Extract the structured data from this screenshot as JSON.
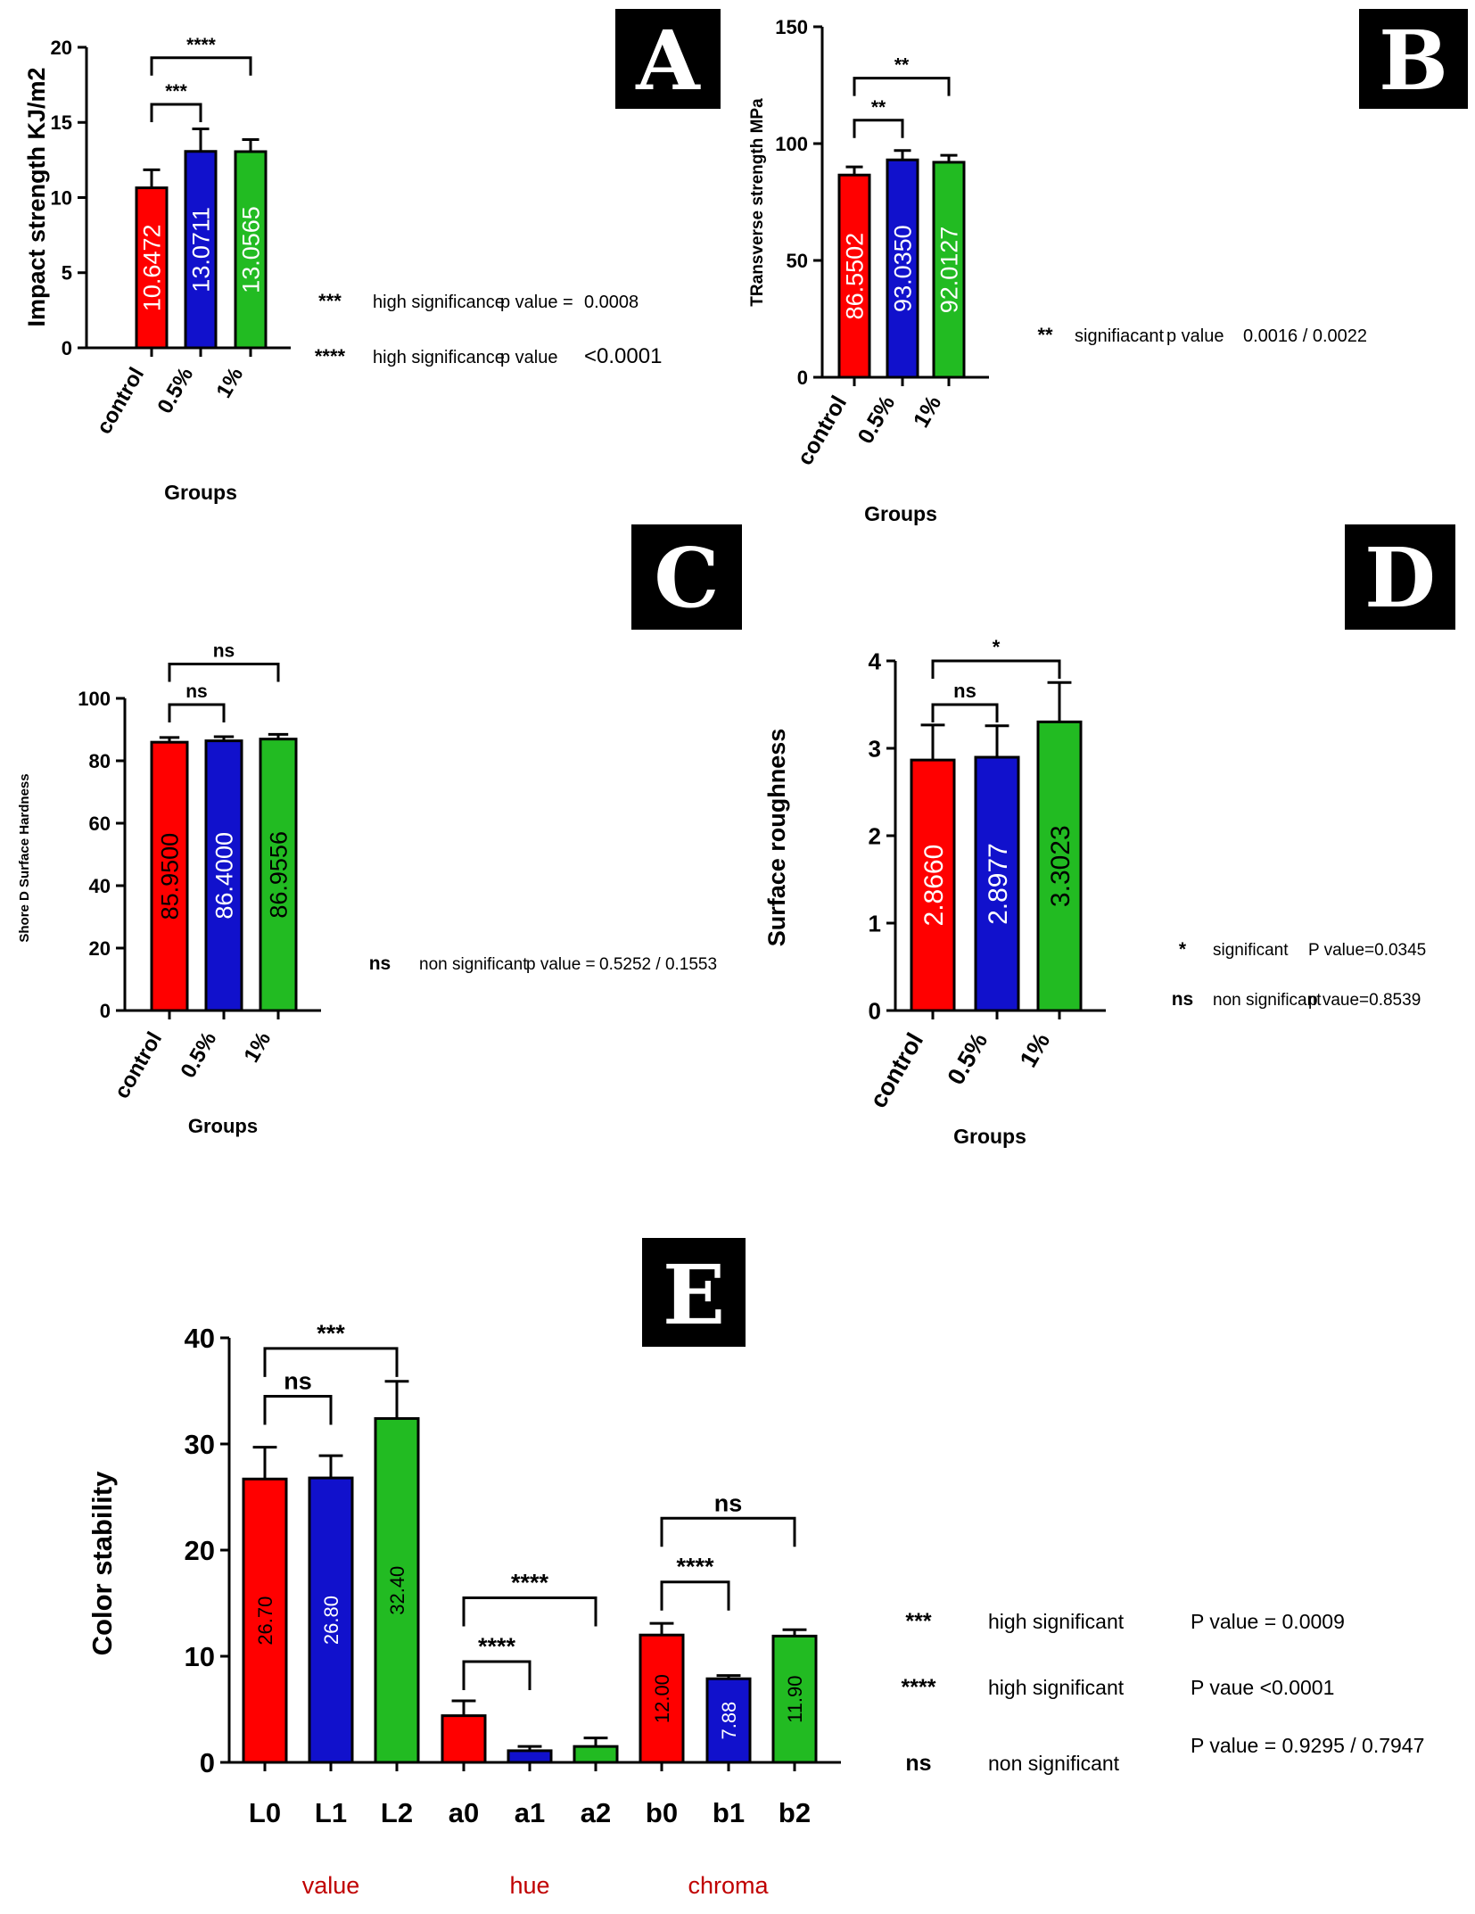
{
  "chart_data": [
    {
      "panel": "A",
      "type": "bar",
      "ylabel": "Impact strength KJ/m2",
      "xlabel": "Groups",
      "ylim": [
        0,
        20
      ],
      "yticks": [
        0,
        5,
        10,
        15,
        20
      ],
      "categories": [
        "control",
        "0.5%",
        "1%"
      ],
      "values": [
        10.6472,
        13.0711,
        13.0565
      ],
      "bar_labels": [
        "10.6472",
        "13.0711",
        "13.0565"
      ],
      "errors": [
        1.2,
        1.5,
        0.8
      ],
      "colors": [
        "#ff0000",
        "#1111cc",
        "#22bb22"
      ],
      "comparisons": [
        {
          "from": 0,
          "to": 1,
          "label": "***",
          "level": 16.2
        },
        {
          "from": 0,
          "to": 2,
          "label": "****",
          "level": 19.3
        }
      ],
      "notes": [
        {
          "symbol": "***",
          "text": "high significance",
          "plabel": "p value =",
          "pvalue": "0.0008"
        },
        {
          "symbol": "****",
          "text": "high significance",
          "plabel": "p value",
          "pvalue": "<0.0001"
        }
      ]
    },
    {
      "panel": "B",
      "type": "bar",
      "ylabel": "TRansverse strength MPa",
      "xlabel": "Groups",
      "ylim": [
        0,
        150
      ],
      "yticks": [
        0,
        50,
        100,
        150
      ],
      "categories": [
        "control",
        "0.5%",
        "1%"
      ],
      "values": [
        86.5502,
        93.035,
        92.0127
      ],
      "bar_labels": [
        "86.5502",
        "93.0350",
        "92.0127"
      ],
      "errors": [
        3.5,
        4,
        3
      ],
      "colors": [
        "#ff0000",
        "#1111cc",
        "#22bb22"
      ],
      "comparisons": [
        {
          "from": 0,
          "to": 1,
          "label": "**",
          "level": 110
        },
        {
          "from": 0,
          "to": 2,
          "label": "**",
          "level": 128
        }
      ],
      "notes": [
        {
          "symbol": "**",
          "text": "signifiacant",
          "plabel": "p value",
          "pvalue": "0.0016 /   0.0022"
        }
      ]
    },
    {
      "panel": "C",
      "type": "bar",
      "ylabel": "Shore D Surface Hardness",
      "xlabel": "Groups",
      "ylim": [
        0,
        100
      ],
      "yticks": [
        0,
        20,
        40,
        60,
        80,
        100
      ],
      "categories": [
        "control",
        "0.5%",
        "1%"
      ],
      "values": [
        85.95,
        86.4,
        86.9556
      ],
      "bar_labels": [
        "85.9500",
        "86.4000",
        "86.9556"
      ],
      "errors": [
        1.5,
        1.3,
        1.5
      ],
      "colors": [
        "#ff0000",
        "#1111cc",
        "#22bb22"
      ],
      "comparisons": [
        {
          "from": 0,
          "to": 1,
          "label": "ns",
          "level": 98
        },
        {
          "from": 0,
          "to": 2,
          "label": "ns",
          "level": 111
        }
      ],
      "notes": [
        {
          "symbol": "ns",
          "text": "non significant",
          "plabel": "p value =",
          "pvalue": "0.5252  /  0.1553"
        }
      ]
    },
    {
      "panel": "D",
      "type": "bar",
      "ylabel": "Surface roughness",
      "xlabel": "Groups",
      "ylim": [
        0,
        4
      ],
      "yticks": [
        0,
        1,
        2,
        3,
        4
      ],
      "categories": [
        "control",
        "0.5%",
        "1%"
      ],
      "values": [
        2.866,
        2.8977,
        3.3023
      ],
      "bar_labels": [
        "2.8660",
        "2.8977",
        "3.3023"
      ],
      "errors": [
        0.4,
        0.36,
        0.45
      ],
      "colors": [
        "#ff0000",
        "#1111cc",
        "#22bb22"
      ],
      "comparisons": [
        {
          "from": 0,
          "to": 1,
          "label": "ns",
          "level": 3.5
        },
        {
          "from": 0,
          "to": 2,
          "label": "*",
          "level": 4.0
        }
      ],
      "notes": [
        {
          "symbol": "*",
          "text": "significant",
          "plabel": "",
          "pvalue": "P value=0.0345"
        },
        {
          "symbol": "ns",
          "text": "non significant",
          "plabel": "",
          "pvalue": "p vaue=0.8539"
        }
      ]
    },
    {
      "panel": "E",
      "type": "bar",
      "ylabel": "Color stability",
      "xlabel": "",
      "ylim": [
        0,
        40
      ],
      "yticks": [
        0,
        10,
        20,
        30,
        40
      ],
      "categories": [
        "L0",
        "L1",
        "L2",
        "a0",
        "a1",
        "a2",
        "b0",
        "b1",
        "b2"
      ],
      "values": [
        26.7,
        26.8,
        32.4,
        4.4,
        1.1,
        1.5,
        12.0,
        7.88,
        11.9
      ],
      "bar_labels": [
        "26.70",
        "26.80",
        "32.40",
        "",
        "",
        "",
        "12.00",
        "7.88",
        "11.90"
      ],
      "errors": [
        3.0,
        2.1,
        3.5,
        1.4,
        0.4,
        0.8,
        1.1,
        0.3,
        0.6
      ],
      "colors": [
        "#ff0000",
        "#1111cc",
        "#22bb22",
        "#ff0000",
        "#1111cc",
        "#22bb22",
        "#ff0000",
        "#1111cc",
        "#22bb22"
      ],
      "comparisons": [
        {
          "from": 0,
          "to": 1,
          "label": "ns",
          "level": 34.5
        },
        {
          "from": 0,
          "to": 2,
          "label": "***",
          "level": 39.0
        },
        {
          "from": 3,
          "to": 4,
          "label": "****",
          "level": 9.5
        },
        {
          "from": 3,
          "to": 5,
          "label": "****",
          "level": 15.5
        },
        {
          "from": 6,
          "to": 7,
          "label": "****",
          "level": 17.0
        },
        {
          "from": 6,
          "to": 8,
          "label": "ns",
          "level": 23.0
        }
      ],
      "group_labels": [
        {
          "text": "value",
          "from": 0,
          "to": 2
        },
        {
          "text": "hue",
          "from": 3,
          "to": 5
        },
        {
          "text": "chroma",
          "from": 6,
          "to": 8
        }
      ],
      "notes": [
        {
          "symbol": "***",
          "text": "high significant",
          "plabel": "",
          "pvalue": "P value =  0.0009"
        },
        {
          "symbol": "****",
          "text": "high  significant",
          "plabel": "",
          "pvalue": "P vaue <0.0001"
        },
        {
          "symbol": "ns",
          "text": "non significant",
          "plabel": "",
          "pvalue": "P value = 0.9295 / 0.7947"
        }
      ]
    }
  ]
}
